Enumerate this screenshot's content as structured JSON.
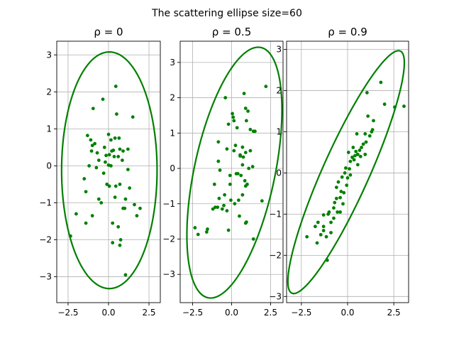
{
  "figure": {
    "title": "The scattering ellipse size=60"
  },
  "colors": {
    "points": "#008000",
    "ellipse": "#008000",
    "grid": "#b0b0b0",
    "axes": "#000000"
  },
  "chart_data": [
    {
      "type": "scatter",
      "title": "ρ = 0",
      "xlim": [
        -3.2,
        3.2
      ],
      "ylim": [
        -3.7,
        3.37
      ],
      "xticks": [
        -2.5,
        0.0,
        2.5
      ],
      "xtick_labels": [
        "−2.5",
        "0.0",
        "2.5"
      ],
      "yticks": [
        -3,
        -2,
        -1,
        0,
        1,
        2,
        3
      ],
      "ytick_labels": [
        "−3",
        "−2",
        "−1",
        "0",
        "1",
        "2",
        "3"
      ],
      "grid": true,
      "ellipse": {
        "center": [
          0.05,
          -0.12
        ],
        "axis_x": 2.95,
        "axis_y": 3.2,
        "rotation_deg": 0
      },
      "points": [
        [
          0.45,
          2.15
        ],
        [
          -0.35,
          1.8
        ],
        [
          -0.95,
          1.55
        ],
        [
          1.5,
          1.32
        ],
        [
          0.5,
          1.4
        ],
        [
          -1.3,
          0.82
        ],
        [
          -1.1,
          0.7
        ],
        [
          -0.85,
          0.6
        ],
        [
          -1.0,
          0.55
        ],
        [
          0.0,
          0.85
        ],
        [
          0.15,
          0.7
        ],
        [
          0.4,
          0.75
        ],
        [
          0.65,
          0.75
        ],
        [
          -0.25,
          0.5
        ],
        [
          0.2,
          0.4
        ],
        [
          0.3,
          0.42
        ],
        [
          0.9,
          0.4
        ],
        [
          0.05,
          0.3
        ],
        [
          -0.15,
          0.28
        ],
        [
          0.35,
          0.25
        ],
        [
          -0.7,
          0.35
        ],
        [
          -1.05,
          0.4
        ],
        [
          -0.6,
          0.15
        ],
        [
          0.6,
          0.25
        ],
        [
          0.7,
          0.45
        ],
        [
          1.2,
          0.45
        ],
        [
          -0.2,
          0.1
        ],
        [
          0.0,
          0.02
        ],
        [
          -1.2,
          0.0
        ],
        [
          -1.5,
          -0.35
        ],
        [
          -0.1,
          -0.5
        ],
        [
          0.05,
          -0.55
        ],
        [
          0.7,
          -0.5
        ],
        [
          1.3,
          -0.6
        ],
        [
          -1.4,
          -0.7
        ],
        [
          0.4,
          -0.85
        ],
        [
          1.05,
          -0.9
        ],
        [
          -0.6,
          -0.9
        ],
        [
          -0.45,
          -1.0
        ],
        [
          1.6,
          -1.05
        ],
        [
          1.95,
          -1.15
        ],
        [
          1.0,
          -1.15
        ],
        [
          0.9,
          -1.15
        ],
        [
          -2.0,
          -1.3
        ],
        [
          -1.0,
          -1.35
        ],
        [
          1.75,
          -1.35
        ],
        [
          -1.4,
          -1.55
        ],
        [
          0.25,
          -1.55
        ],
        [
          0.6,
          -1.65
        ],
        [
          -2.35,
          -1.9
        ],
        [
          0.75,
          -2.0
        ],
        [
          0.25,
          -2.08
        ],
        [
          0.7,
          -2.15
        ],
        [
          1.05,
          -2.95
        ],
        [
          0.45,
          -0.55
        ],
        [
          -0.3,
          -0.2
        ],
        [
          0.15,
          0.0
        ],
        [
          0.85,
          0.15
        ],
        [
          -0.75,
          -0.05
        ],
        [
          1.2,
          -0.1
        ]
      ]
    },
    {
      "type": "scatter",
      "title": "ρ = 0.5",
      "xlim": [
        -3.3,
        3.3
      ],
      "ylim": [
        -3.8,
        3.6
      ],
      "xticks": [
        -2.5,
        0.0,
        2.5
      ],
      "xtick_labels": [
        "−2.5",
        "0.0",
        "2.5"
      ],
      "yticks": [
        -3,
        -2,
        -1,
        0,
        1,
        2,
        3
      ],
      "ytick_labels": [
        "−3",
        "−2",
        "−1",
        "0",
        "1",
        "2",
        "3"
      ],
      "grid": true,
      "ellipse": {
        "center": [
          0.18,
          -0.12
        ],
        "axis_x": 3.05,
        "axis_y": 3.55,
        "rotation_deg": 0,
        "correlation": 0.5
      },
      "points": [
        [
          2.2,
          2.32
        ],
        [
          0.8,
          2.12
        ],
        [
          -0.4,
          2.0
        ],
        [
          0.05,
          1.55
        ],
        [
          0.9,
          1.7
        ],
        [
          1.05,
          1.62
        ],
        [
          0.1,
          1.45
        ],
        [
          0.15,
          1.35
        ],
        [
          -0.2,
          1.25
        ],
        [
          0.95,
          1.35
        ],
        [
          1.4,
          1.05
        ],
        [
          1.5,
          1.05
        ],
        [
          0.35,
          1.15
        ],
        [
          1.2,
          1.1
        ],
        [
          0.25,
          0.65
        ],
        [
          -0.85,
          0.75
        ],
        [
          -0.3,
          0.55
        ],
        [
          0.7,
          0.6
        ],
        [
          0.15,
          0.5
        ],
        [
          0.55,
          0.38
        ],
        [
          0.75,
          0.32
        ],
        [
          0.9,
          0.45
        ],
        [
          1.2,
          0.5
        ],
        [
          0.7,
          0.1
        ],
        [
          1.1,
          0.0
        ],
        [
          -0.85,
          0.2
        ],
        [
          -0.75,
          -0.05
        ],
        [
          0.3,
          -0.15
        ],
        [
          0.6,
          -0.2
        ],
        [
          0.85,
          -0.35
        ],
        [
          1.0,
          -0.45
        ],
        [
          0.9,
          -0.5
        ],
        [
          -0.1,
          -0.2
        ],
        [
          -1.1,
          -0.45
        ],
        [
          -0.45,
          -0.75
        ],
        [
          -0.8,
          -0.85
        ],
        [
          -0.5,
          -1.05
        ],
        [
          -1.2,
          -1.15
        ],
        [
          -1.05,
          -1.1
        ],
        [
          -0.6,
          -1.15
        ],
        [
          -0.9,
          -1.1
        ],
        [
          0.45,
          -0.9
        ],
        [
          0.2,
          -1.0
        ],
        [
          -0.3,
          -1.2
        ],
        [
          0.5,
          -1.35
        ],
        [
          0.9,
          -1.55
        ],
        [
          0.95,
          -1.52
        ],
        [
          -0.05,
          -0.9
        ],
        [
          -2.35,
          -1.68
        ],
        [
          -1.6,
          -1.8
        ],
        [
          -1.55,
          -1.72
        ],
        [
          -2.15,
          -1.87
        ],
        [
          -0.2,
          -1.75
        ],
        [
          1.4,
          -2.0
        ],
        [
          1.95,
          -0.92
        ],
        [
          0.4,
          -0.15
        ],
        [
          0.55,
          0.35
        ],
        [
          1.35,
          0.05
        ],
        [
          -0.1,
          -0.45
        ],
        [
          0.7,
          -0.75
        ]
      ]
    },
    {
      "type": "scatter",
      "title": "ρ = 0.9",
      "xlim": [
        -3.3,
        3.3
      ],
      "ylim": [
        -3.15,
        3.2
      ],
      "xticks": [
        -2.5,
        0.0,
        2.5
      ],
      "xtick_labels": [
        "−2.5",
        "0.0",
        "2.5"
      ],
      "yticks": [
        -3,
        -2,
        -1,
        0,
        1,
        2,
        3
      ],
      "ytick_labels": [
        "−3",
        "−2",
        "−1",
        "0",
        "1",
        "2",
        "3"
      ],
      "grid": true,
      "ellipse": {
        "center": [
          -0.08,
          0.02
        ],
        "axis_x": 3.15,
        "axis_y": 2.95,
        "rotation_deg": 0,
        "correlation": 0.9
      },
      "points": [
        [
          1.8,
          2.2
        ],
        [
          3.05,
          1.62
        ],
        [
          2.55,
          1.6
        ],
        [
          2.0,
          1.67
        ],
        [
          1.05,
          1.95
        ],
        [
          1.1,
          1.38
        ],
        [
          1.4,
          1.27
        ],
        [
          1.35,
          1.05
        ],
        [
          1.3,
          1.0
        ],
        [
          0.95,
          0.95
        ],
        [
          1.2,
          0.9
        ],
        [
          1.0,
          0.75
        ],
        [
          0.75,
          0.62
        ],
        [
          0.65,
          0.55
        ],
        [
          0.55,
          0.45
        ],
        [
          0.4,
          0.42
        ],
        [
          0.25,
          0.38
        ],
        [
          0.35,
          0.32
        ],
        [
          0.45,
          0.52
        ],
        [
          0.05,
          0.5
        ],
        [
          0.15,
          0.28
        ],
        [
          0.55,
          0.2
        ],
        [
          0.1,
          0.1
        ],
        [
          -0.1,
          0.12
        ],
        [
          -0.15,
          0.0
        ],
        [
          0.0,
          -0.12
        ],
        [
          -0.3,
          -0.1
        ],
        [
          -0.5,
          -0.22
        ],
        [
          -0.35,
          -0.45
        ],
        [
          -0.2,
          -0.48
        ],
        [
          -0.4,
          -0.6
        ],
        [
          -0.6,
          -0.62
        ],
        [
          -0.7,
          -0.72
        ],
        [
          -0.75,
          -0.85
        ],
        [
          -1.0,
          -0.95
        ],
        [
          -0.55,
          -0.95
        ],
        [
          -0.4,
          -0.95
        ],
        [
          -1.05,
          -1.0
        ],
        [
          -1.3,
          -1.02
        ],
        [
          -0.75,
          -1.1
        ],
        [
          -0.9,
          -1.2
        ],
        [
          -1.3,
          -1.3
        ],
        [
          -1.75,
          -1.3
        ],
        [
          -1.6,
          -1.2
        ],
        [
          -1.45,
          -1.5
        ],
        [
          -0.9,
          -1.45
        ],
        [
          -1.15,
          -1.55
        ],
        [
          -2.2,
          -1.55
        ],
        [
          -1.65,
          -1.7
        ],
        [
          -1.1,
          -2.12
        ],
        [
          -1.3,
          -1.4
        ],
        [
          0.3,
          0.62
        ],
        [
          0.7,
          0.4
        ],
        [
          -0.05,
          -0.3
        ],
        [
          0.85,
          0.7
        ],
        [
          -0.6,
          -0.35
        ],
        [
          0.15,
          -0.05
        ],
        [
          0.5,
          0.95
        ],
        [
          -0.25,
          -0.75
        ],
        [
          0.95,
          0.45
        ]
      ]
    }
  ]
}
